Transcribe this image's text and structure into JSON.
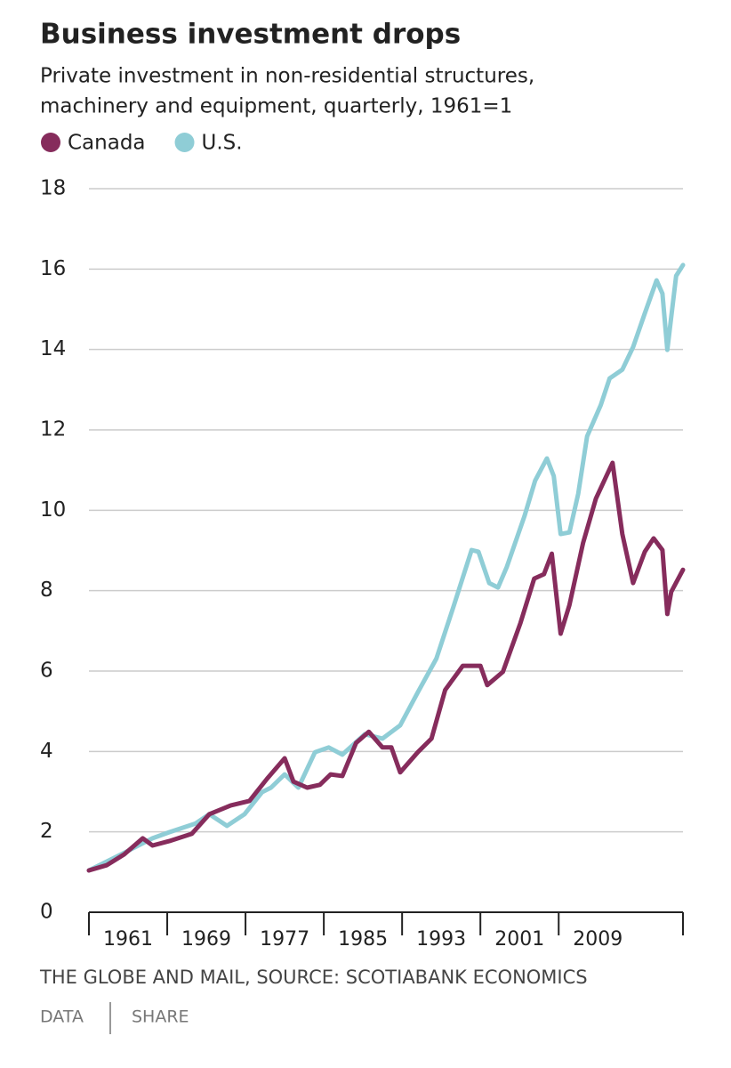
{
  "chart_data": {
    "type": "line",
    "title": "Business investment drops",
    "subtitle": [
      "Private investment in non-residential structures,",
      "machinery and equipment, quarterly, 1961=1"
    ],
    "series": [
      {
        "name": "Canada",
        "color": "#862c5c",
        "x": [
          1961,
          1962.8,
          1964.6,
          1966.5,
          1967.5,
          1969.2,
          1971.5,
          1973.3,
          1975.5,
          1977.4,
          1979.2,
          1981,
          1981.9,
          1983.3,
          1984.6,
          1985.7,
          1986.9,
          1988.3,
          1989.6,
          1991,
          1991.9,
          1992.8,
          1994.6,
          1996,
          1997.4,
          1999.2,
          2001,
          2001.7,
          2003.3,
          2005.1,
          2006.5,
          2007.5,
          2008.3,
          2009.2,
          2010.1,
          2011.5,
          2012.8,
          2014.5,
          2015.5,
          2016.6,
          2017.8,
          2018.7,
          2019.6,
          2020.1,
          2020.5,
          2021.7
        ],
        "values": [
          1.04,
          1.17,
          1.44,
          1.84,
          1.66,
          1.77,
          1.95,
          2.44,
          2.66,
          2.77,
          3.32,
          3.83,
          3.25,
          3.1,
          3.17,
          3.43,
          3.39,
          4.21,
          4.49,
          4.1,
          4.1,
          3.48,
          3.98,
          4.32,
          5.53,
          6.13,
          6.13,
          5.65,
          5.98,
          7.2,
          8.3,
          8.41,
          8.92,
          6.93,
          7.64,
          9.19,
          10.29,
          11.18,
          9.41,
          8.19,
          8.97,
          9.3,
          9.01,
          7.42,
          7.97,
          8.52
        ]
      },
      {
        "name": "U.S.",
        "color": "#8fcdd6",
        "x": [
          1961,
          1964.6,
          1967.5,
          1969.2,
          1971.9,
          1973.3,
          1975.1,
          1976.9,
          1978.7,
          1979.6,
          1981,
          1982.4,
          1984.1,
          1985.5,
          1986.9,
          1989.2,
          1991,
          1992.8,
          1994.6,
          1996.5,
          1998.3,
          2000.1,
          2000.8,
          2001.9,
          2002.8,
          2003.7,
          2005.5,
          2006.6,
          2007.8,
          2008.5,
          2009.2,
          2010.1,
          2011,
          2011.9,
          2013.3,
          2014.2,
          2015.5,
          2016.6,
          2017.8,
          2019,
          2019.6,
          2020.1,
          2021,
          2021.7
        ],
        "values": [
          1.04,
          1.48,
          1.84,
          1.99,
          2.21,
          2.44,
          2.15,
          2.44,
          2.99,
          3.1,
          3.43,
          3.1,
          3.98,
          4.1,
          3.92,
          4.43,
          4.32,
          4.65,
          5.47,
          6.31,
          7.64,
          9.01,
          8.97,
          8.19,
          8.08,
          8.59,
          9.85,
          10.74,
          11.29,
          10.85,
          9.41,
          9.45,
          10.41,
          11.84,
          12.62,
          13.28,
          13.5,
          14.06,
          14.9,
          15.72,
          15.39,
          13.99,
          15.83,
          16.1
        ]
      }
    ],
    "xlim": [
      1961,
      2021.7
    ],
    "xticks": [
      1961,
      1969,
      1977,
      1985,
      1993,
      2001,
      2009
    ],
    "ylim": [
      0,
      18
    ],
    "yticks": [
      0,
      2,
      4,
      6,
      8,
      10,
      12,
      14,
      16,
      18
    ],
    "grid": true,
    "source": "THE GLOBE AND MAIL, SOURCE: SCOTIABANK ECONOMICS",
    "links": [
      "DATA",
      "SHARE"
    ]
  }
}
